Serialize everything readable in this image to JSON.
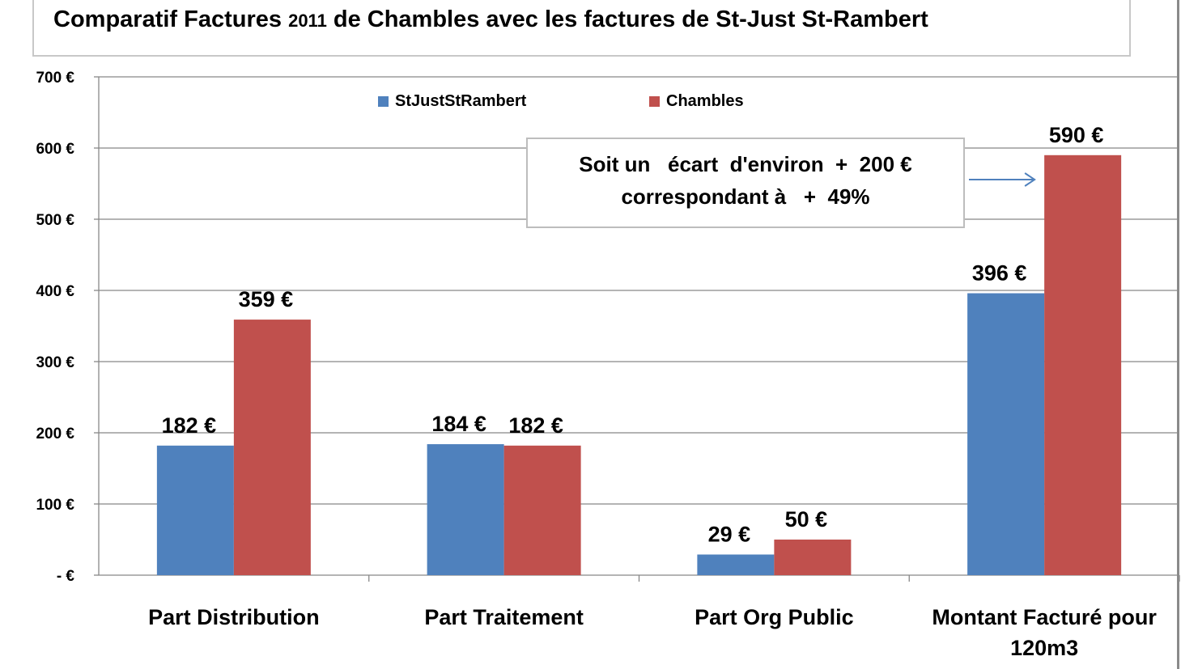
{
  "title": {
    "part1": "Comparatif  Factures ",
    "year": "2011",
    "part2": "  de Chambles avec les factures de St-Just St-Rambert"
  },
  "colors": {
    "series_blue": "#4f81bd",
    "series_red": "#c0504d",
    "grid": "#888888",
    "arrow": "#4f81bd"
  },
  "annotation": {
    "line1": "Soit un   écart  d'environ  +  200 €",
    "line2": "correspondant à   +  49%"
  },
  "chart_data": {
    "type": "bar",
    "categories": [
      "Part Distribution",
      "Part Traitement",
      "Part Org Public",
      "Montant Facturé pour 120m3"
    ],
    "category_lines": [
      [
        "Part Distribution"
      ],
      [
        "Part Traitement"
      ],
      [
        "Part Org Public"
      ],
      [
        "Montant Facturé pour",
        "120m3"
      ]
    ],
    "series": [
      {
        "name": "StJustStRambert",
        "values": [
          182,
          184,
          29,
          396
        ],
        "labels": [
          "182 €",
          "184 €",
          "29 €",
          "396 €"
        ],
        "color": "#4f81bd"
      },
      {
        "name": "Chambles",
        "values": [
          359,
          182,
          50,
          590
        ],
        "labels": [
          "359 €",
          "182 €",
          "50 €",
          "590 €"
        ],
        "color": "#c0504d"
      }
    ],
    "ylim": [
      0,
      700
    ],
    "yticks": [
      0,
      100,
      200,
      300,
      400,
      500,
      600,
      700
    ],
    "ytick_labels": [
      "- €",
      "100 €",
      "200 €",
      "300 €",
      "400 €",
      "500 €",
      "600 €",
      "700 €"
    ],
    "grid": true,
    "legend_position": "top"
  }
}
